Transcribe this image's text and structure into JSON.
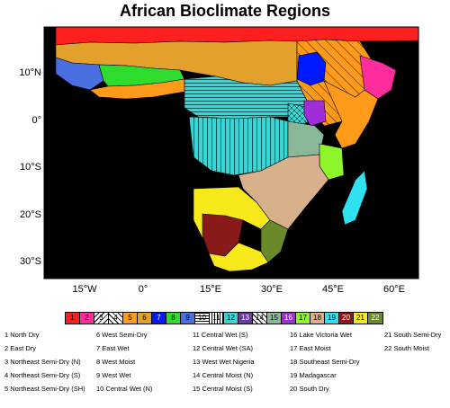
{
  "title": "African Bioclimate Regions",
  "axes": {
    "lat_labels": [
      "10°N",
      "0°",
      "10°S",
      "20°S",
      "30°S"
    ],
    "lon_labels": [
      "15°W",
      "0°",
      "15°E",
      "30°E",
      "45°E",
      "60°E"
    ]
  },
  "map": {
    "ocean_color": "#000000",
    "land_frame_color": "#ffffff"
  },
  "regions": [
    {
      "id": "1",
      "label": "North Dry",
      "color": "#ff1f1f",
      "pattern": "solid"
    },
    {
      "id": "2",
      "label": "East Dry",
      "color": "#ff2c9c",
      "pattern": "solid"
    },
    {
      "id": "3",
      "label": "Northeast Semi-Dry (N)",
      "color": "#ffffff",
      "pattern": "diag-left"
    },
    {
      "id": "4",
      "label": "Northeast Semi-Dry (S)",
      "color": "#ffffff",
      "pattern": "diag-right"
    },
    {
      "id": "5",
      "label": "Northeast Semi-Dry (SH)",
      "color": "#ff9a1a",
      "pattern": "solid"
    },
    {
      "id": "6",
      "label": "West Semi-Dry",
      "color": "#e3a02a",
      "pattern": "solid"
    },
    {
      "id": "7",
      "label": "East Wet",
      "color": "#0018ff",
      "pattern": "solid"
    },
    {
      "id": "8",
      "label": "West Moist",
      "color": "#2ddc2d",
      "pattern": "solid"
    },
    {
      "id": "9",
      "label": "West Wet",
      "color": "#4a6fe0",
      "pattern": "solid"
    },
    {
      "id": "10",
      "label": "Central Wet (N)",
      "color": "#ffffff",
      "pattern": "hlines"
    },
    {
      "id": "11",
      "label": "Central Wet (S)",
      "color": "#ffffff",
      "pattern": "vlines"
    },
    {
      "id": "12",
      "label": "Central Wet (SA)",
      "color": "#36d6d6",
      "pattern": "solid"
    },
    {
      "id": "13",
      "label": "West Wet Nigeria",
      "color": "#6a3aa8",
      "pattern": "solid"
    },
    {
      "id": "14",
      "label": "Central Moist (N)",
      "color": "#ffffff",
      "pattern": "cross"
    },
    {
      "id": "15",
      "label": "Central Moist (S)",
      "color": "#88b898",
      "pattern": "solid"
    },
    {
      "id": "16",
      "label": "Lake Victoria Wet",
      "color": "#a02cd8",
      "pattern": "solid"
    },
    {
      "id": "17",
      "label": "East Moist",
      "color": "#8ef52a",
      "pattern": "solid"
    },
    {
      "id": "18",
      "label": "Southeast Semi-Dry",
      "color": "#d8b08c",
      "pattern": "solid"
    },
    {
      "id": "19",
      "label": "Madagascar",
      "color": "#2ee0f0",
      "pattern": "solid"
    },
    {
      "id": "20",
      "label": "South Dry",
      "color": "#8a1a1a",
      "pattern": "solid"
    },
    {
      "id": "21",
      "label": "South Semi-Dry",
      "color": "#f8ea1a",
      "pattern": "solid"
    },
    {
      "id": "22",
      "label": "South Moist",
      "color": "#6a8a2a",
      "pattern": "solid"
    }
  ]
}
